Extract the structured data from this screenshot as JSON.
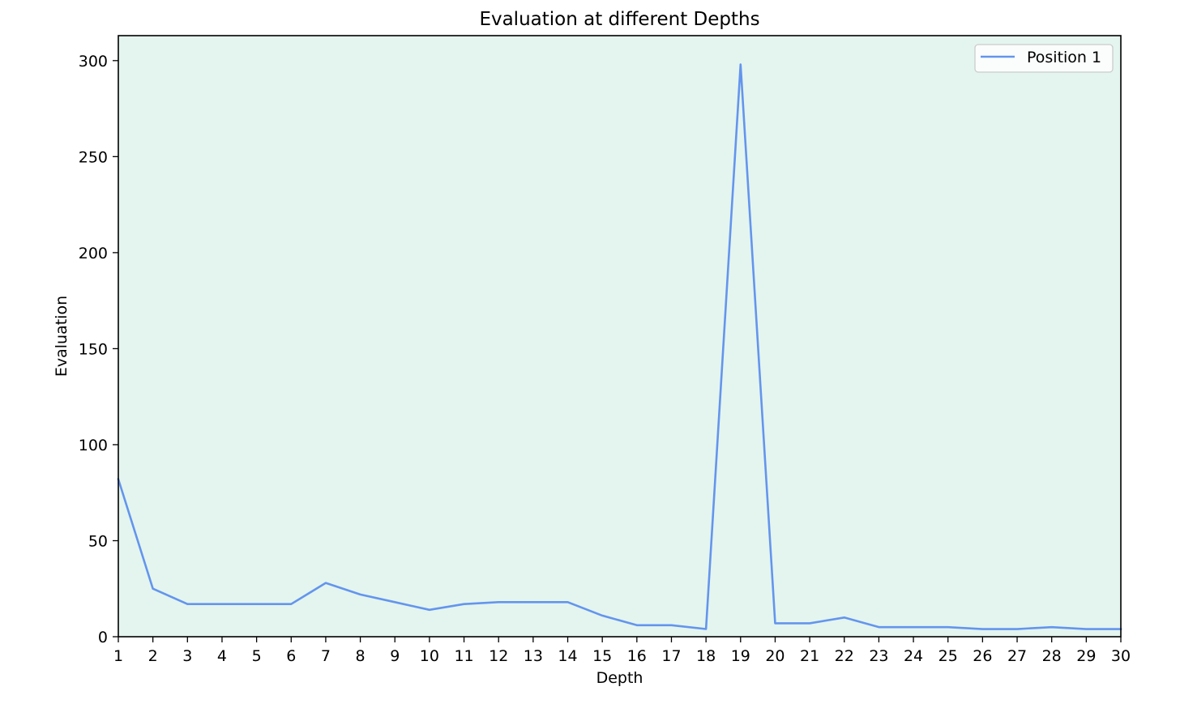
{
  "chart_data": {
    "type": "line",
    "title": "Evaluation at different Depths",
    "xlabel": "Depth",
    "ylabel": "Evaluation",
    "x": [
      1,
      2,
      3,
      4,
      5,
      6,
      7,
      8,
      9,
      10,
      11,
      12,
      13,
      14,
      15,
      16,
      17,
      18,
      19,
      20,
      21,
      22,
      23,
      24,
      25,
      26,
      27,
      28,
      29,
      30
    ],
    "series": [
      {
        "name": "Position 1",
        "color": "#6495ed",
        "values": [
          82,
          25,
          17,
          17,
          17,
          17,
          28,
          22,
          18,
          14,
          17,
          18,
          18,
          18,
          11,
          6,
          6,
          4,
          298,
          7,
          7,
          10,
          5,
          5,
          5,
          4,
          4,
          5,
          4,
          4
        ]
      }
    ],
    "xlim": [
      1,
      30
    ],
    "ylim": [
      0,
      313
    ],
    "xticks": [
      1,
      2,
      3,
      4,
      5,
      6,
      7,
      8,
      9,
      10,
      11,
      12,
      13,
      14,
      15,
      16,
      17,
      18,
      19,
      20,
      21,
      22,
      23,
      24,
      25,
      26,
      27,
      28,
      29,
      30
    ],
    "yticks": [
      0,
      50,
      100,
      150,
      200,
      250,
      300
    ],
    "grid": false,
    "legend_position": "top-right",
    "plot_background": "#e4f5ef"
  }
}
